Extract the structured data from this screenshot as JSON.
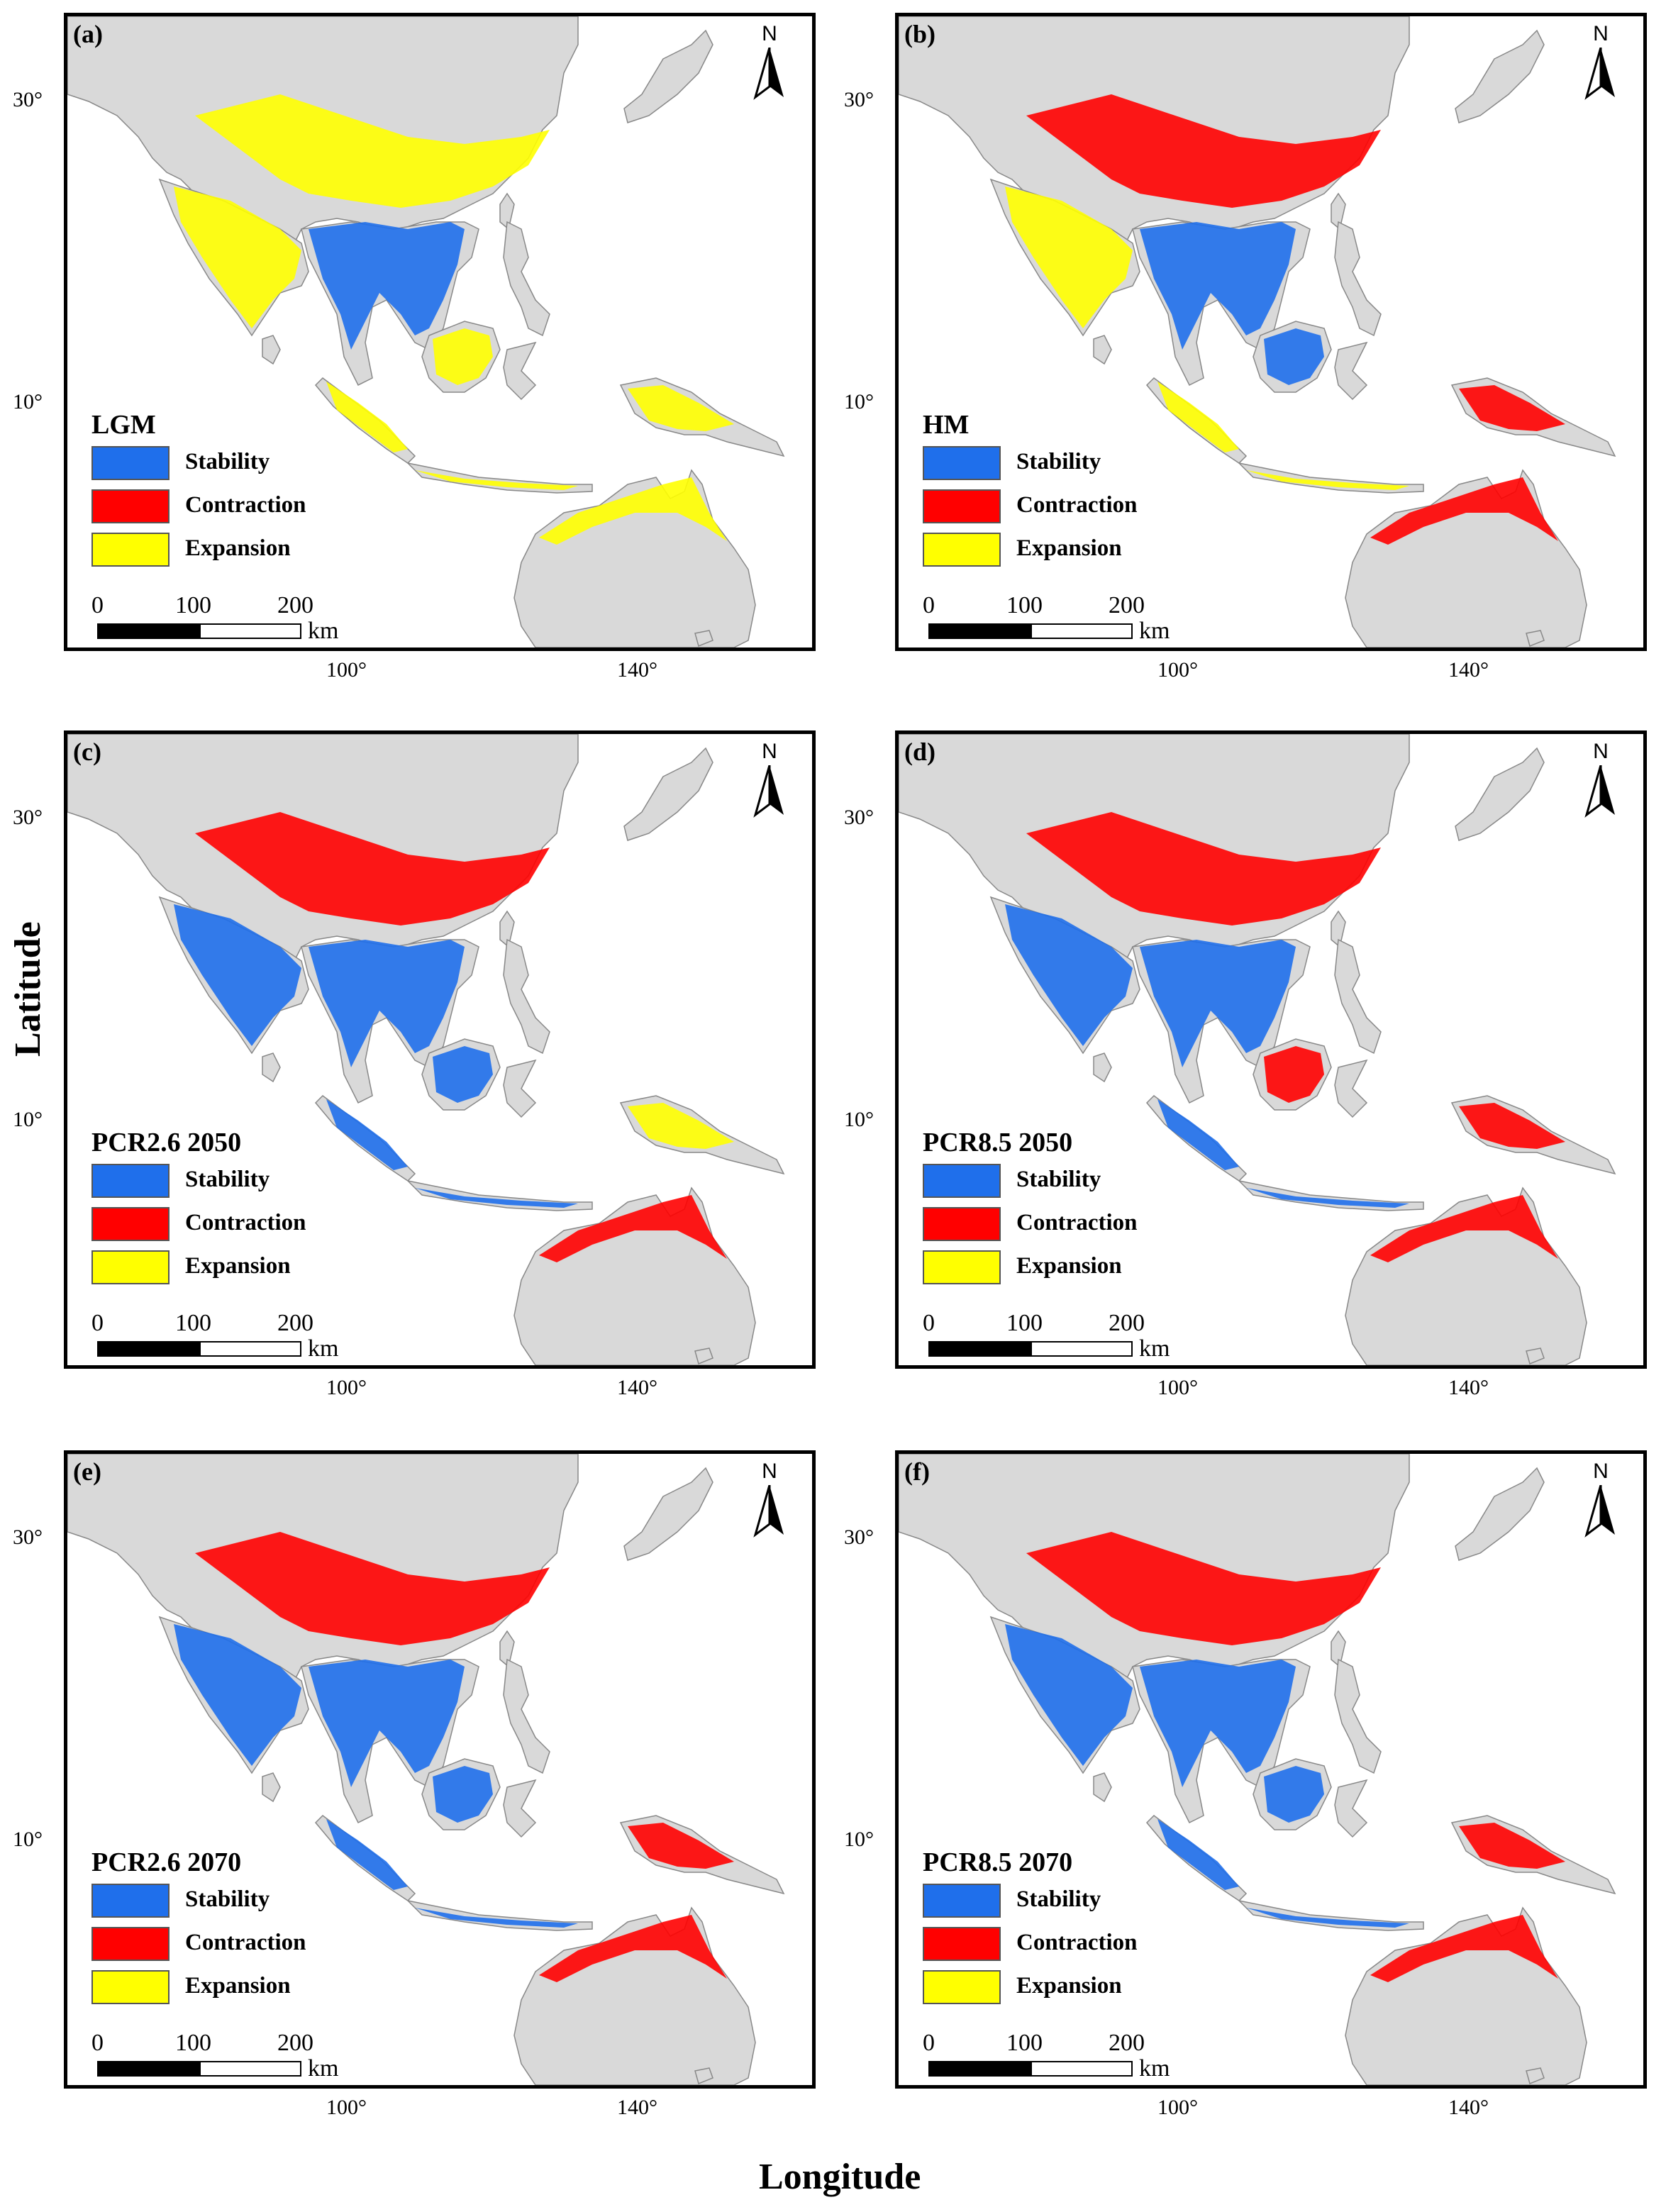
{
  "panels": [
    {
      "id": "a",
      "label": "(a)",
      "title": "LGM"
    },
    {
      "id": "b",
      "label": "(b)",
      "title": "HM"
    },
    {
      "id": "c",
      "label": "(c)",
      "title": "PCR2.6 2050"
    },
    {
      "id": "d",
      "label": "(d)",
      "title": "PCR8.5 2050"
    },
    {
      "id": "e",
      "label": "(e)",
      "title": "PCR2.6 2070"
    },
    {
      "id": "f",
      "label": "(f)",
      "title": "PCR8.5 2070"
    }
  ],
  "legend": {
    "stability": {
      "label": "Stability",
      "color": "#1f6feb"
    },
    "contraction": {
      "label": "Contraction",
      "color": "#ff0000"
    },
    "expansion": {
      "label": "Expansion",
      "color": "#ffff00"
    }
  },
  "scale_bar": {
    "ticks": [
      "0",
      "100",
      "200"
    ],
    "unit": "km"
  },
  "north_arrow": {
    "label": "N",
    "icon": "north-arrow-icon"
  },
  "axis": {
    "lat_ticks": [
      "30°",
      "10°"
    ],
    "lon_ticks": [
      "100°",
      "140°"
    ],
    "x_title": "Longitude",
    "y_title": "Latitude"
  },
  "colors": {
    "land": "#d9d9d9",
    "frame": "#000000"
  }
}
